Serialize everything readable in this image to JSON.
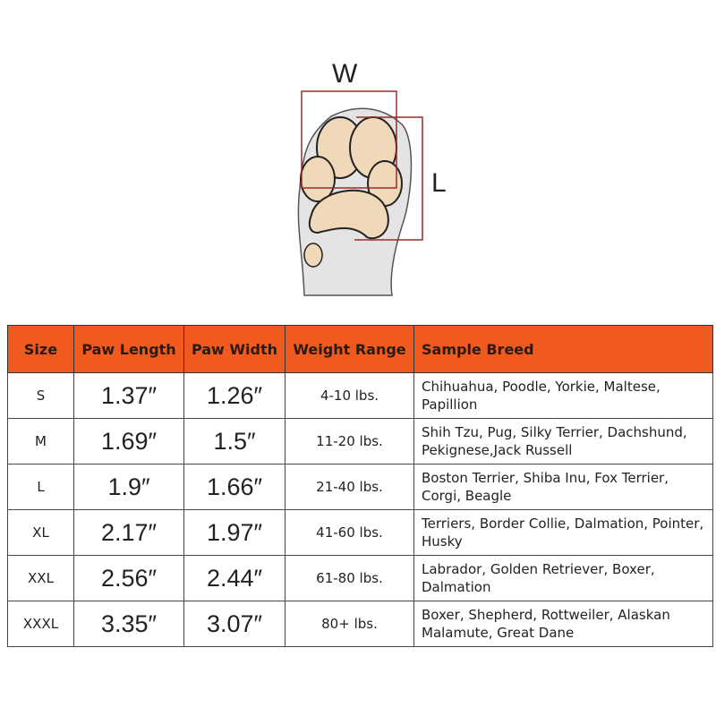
{
  "diagram": {
    "width_label": "W",
    "length_label": "L",
    "box_color": "#9b2a2a",
    "pad_color": "#efd9b8"
  },
  "table": {
    "header_color": "#f15a1e",
    "headers": [
      "Size",
      "Paw Length",
      "Paw Width",
      "Weight Range",
      "Sample Breed"
    ],
    "rows": [
      {
        "size": "S",
        "length": "1.37″",
        "width": "1.26″",
        "weight": "4-10 lbs.",
        "breed": "Chihuahua, Poodle, Yorkie, Maltese, Papillion"
      },
      {
        "size": "M",
        "length": "1.69″",
        "width": "1.5″",
        "weight": "11-20 lbs.",
        "breed": "Shih Tzu, Pug, Silky Terrier, Dachshund, Pekignese,Jack Russell"
      },
      {
        "size": "L",
        "length": "1.9″",
        "width": "1.66″",
        "weight": "21-40 lbs.",
        "breed": "Boston Terrier, Shiba Inu, Fox Terrier, Corgi, Beagle"
      },
      {
        "size": "XL",
        "length": "2.17″",
        "width": "1.97″",
        "weight": "41-60 lbs.",
        "breed": "Terriers, Border Collie, Dalmation, Pointer, Husky"
      },
      {
        "size": "XXL",
        "length": "2.56″",
        "width": "2.44″",
        "weight": "61-80 lbs.",
        "breed": "Labrador, Golden Retriever, Boxer, Dalmation"
      },
      {
        "size": "XXXL",
        "length": "3.35″",
        "width": "3.07″",
        "weight": "80+ lbs.",
        "breed": "Boxer, Shepherd, Rottweiler, Alaskan Malamute, Great Dane"
      }
    ]
  }
}
